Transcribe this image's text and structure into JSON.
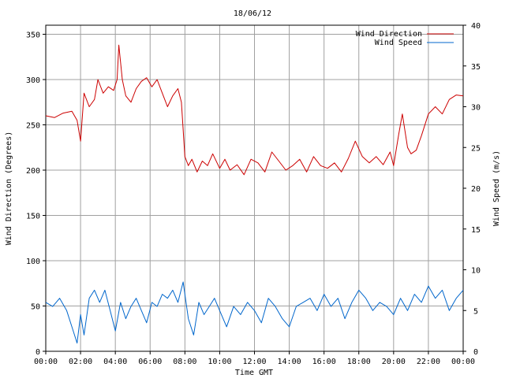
{
  "chart_data": {
    "type": "line",
    "title": "18/06/12",
    "xlabel": "Time GMT",
    "ylabel_left": "Wind Direction (Degrees)",
    "ylabel_right": "Wind Speed (m/s)",
    "x_ticks": [
      "00:00",
      "02:00",
      "04:00",
      "06:00",
      "08:00",
      "10:00",
      "12:00",
      "14:00",
      "16:00",
      "18:00",
      "20:00",
      "22:00",
      "00:00"
    ],
    "x_range_hours": [
      0,
      24
    ],
    "ylim_left": [
      0,
      360
    ],
    "ylim_right": [
      0,
      40
    ],
    "y_ticks_left": [
      0,
      50,
      100,
      150,
      200,
      250,
      300,
      350
    ],
    "y_ticks_right": [
      0,
      5,
      10,
      15,
      20,
      25,
      30,
      35,
      40
    ],
    "grid": true,
    "legend_position": "top-right",
    "series": [
      {
        "name": "Wind Direction",
        "axis": "left",
        "color": "#cc0000",
        "x_hours": [
          0,
          0.5,
          1,
          1.5,
          1.8,
          2.0,
          2.2,
          2.5,
          2.8,
          3.0,
          3.3,
          3.6,
          3.9,
          4.1,
          4.2,
          4.4,
          4.6,
          4.9,
          5.2,
          5.5,
          5.8,
          6.1,
          6.4,
          6.7,
          7.0,
          7.3,
          7.6,
          7.8,
          8.0,
          8.2,
          8.4,
          8.7,
          9.0,
          9.3,
          9.6,
          10.0,
          10.3,
          10.6,
          11.0,
          11.4,
          11.8,
          12.2,
          12.6,
          13.0,
          13.4,
          13.8,
          14.2,
          14.6,
          15.0,
          15.4,
          15.8,
          16.2,
          16.6,
          17.0,
          17.4,
          17.8,
          18.2,
          18.6,
          19.0,
          19.4,
          19.8,
          20.0,
          20.3,
          20.5,
          20.8,
          21.0,
          21.3,
          21.6,
          22.0,
          22.4,
          22.8,
          23.2,
          23.6,
          24.0
        ],
        "values": [
          260,
          258,
          263,
          265,
          255,
          232,
          285,
          270,
          278,
          300,
          285,
          292,
          288,
          300,
          338,
          300,
          282,
          275,
          290,
          298,
          302,
          292,
          300,
          285,
          270,
          282,
          290,
          275,
          215,
          205,
          212,
          198,
          210,
          205,
          218,
          202,
          212,
          200,
          206,
          195,
          212,
          208,
          198,
          220,
          210,
          200,
          205,
          212,
          198,
          215,
          205,
          202,
          208,
          198,
          213,
          232,
          215,
          208,
          215,
          206,
          220,
          205,
          240,
          262,
          225,
          218,
          222,
          238,
          262,
          270,
          262,
          278,
          283,
          282
        ]
      },
      {
        "name": "Wind Speed",
        "axis": "right",
        "color": "#0066cc",
        "x_hours": [
          0,
          0.4,
          0.8,
          1.2,
          1.5,
          1.8,
          2.0,
          2.2,
          2.5,
          2.8,
          3.1,
          3.4,
          3.7,
          4.0,
          4.3,
          4.6,
          4.9,
          5.2,
          5.5,
          5.8,
          6.1,
          6.4,
          6.7,
          7.0,
          7.3,
          7.6,
          7.9,
          8.2,
          8.5,
          8.8,
          9.1,
          9.4,
          9.7,
          10.0,
          10.4,
          10.8,
          11.2,
          11.6,
          12.0,
          12.4,
          12.8,
          13.2,
          13.6,
          14.0,
          14.4,
          14.8,
          15.2,
          15.6,
          16.0,
          16.4,
          16.8,
          17.2,
          17.6,
          18.0,
          18.4,
          18.8,
          19.2,
          19.6,
          20.0,
          20.4,
          20.8,
          21.2,
          21.6,
          22.0,
          22.4,
          22.8,
          23.2,
          23.6,
          24.0
        ],
        "values": [
          6.0,
          5.5,
          6.5,
          5.0,
          3.0,
          1.0,
          4.5,
          2.0,
          6.5,
          7.5,
          6.0,
          7.5,
          5.0,
          2.5,
          6.0,
          4.0,
          5.5,
          6.5,
          5.0,
          3.5,
          6.0,
          5.5,
          7.0,
          6.5,
          7.5,
          6.0,
          8.5,
          4.0,
          2.0,
          6.0,
          4.5,
          5.5,
          6.5,
          5.0,
          3.0,
          5.5,
          4.5,
          6.0,
          5.0,
          3.5,
          6.5,
          5.5,
          4.0,
          3.0,
          5.5,
          6.0,
          6.5,
          5.0,
          7.0,
          5.5,
          6.5,
          4.0,
          6.0,
          7.5,
          6.5,
          5.0,
          6.0,
          5.5,
          4.5,
          6.5,
          5.0,
          7.0,
          6.0,
          8.0,
          6.5,
          7.5,
          5.0,
          6.5,
          7.5
        ]
      }
    ]
  }
}
